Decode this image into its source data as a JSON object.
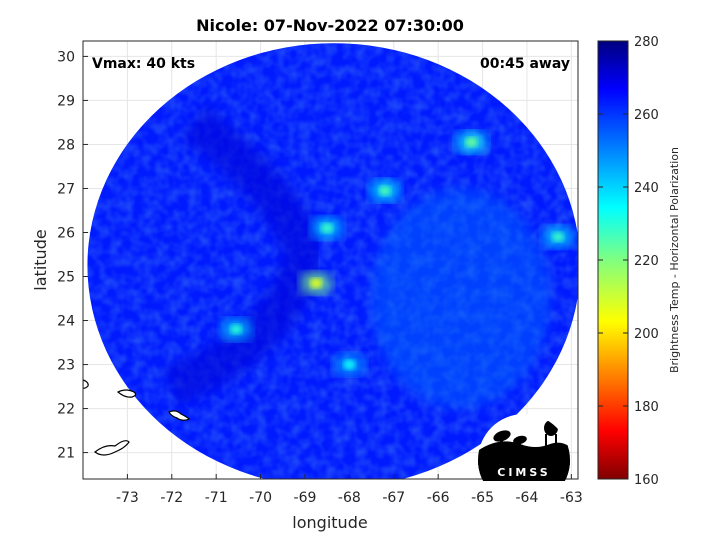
{
  "chart_data": {
    "type": "heatmap",
    "title": "Nicole: 07-Nov-2022 07:30:00",
    "xlabel": "longitude",
    "ylabel": "latitude",
    "xlim": [
      -74.0,
      -62.85
    ],
    "ylim": [
      20.4,
      30.35
    ],
    "xticks": [
      -73,
      -72,
      -71,
      -70,
      -69,
      -68,
      -67,
      -66,
      -65,
      -64,
      -63
    ],
    "yticks": [
      21,
      22,
      23,
      24,
      25,
      26,
      27,
      28,
      29,
      30
    ],
    "grid": true,
    "colorbar": {
      "label": "Brightness Temp - Horizontal Polarization",
      "range": [
        160,
        280
      ],
      "ticks": [
        160,
        180,
        200,
        220,
        240,
        260,
        280
      ],
      "colormap": "jet",
      "placement": "right"
    },
    "swath": {
      "center_lon": -68.35,
      "center_lat": 25.25,
      "radius_lon": 5.55,
      "radius_lat": 5.05
    },
    "annotations": {
      "vmax": "Vmax: 40 kts",
      "time_offset": "00:45 away"
    },
    "features": [
      {
        "name": "eye",
        "lon": -68.75,
        "lat": 24.85,
        "value": 208
      },
      {
        "name": "band-north",
        "lon": -68.5,
        "lat": 26.1,
        "value": 228
      },
      {
        "name": "band-northeast",
        "lon": -67.2,
        "lat": 26.95,
        "value": 226
      },
      {
        "name": "cell-east",
        "lon": -65.25,
        "lat": 28.05,
        "value": 222
      },
      {
        "name": "cell-far-east",
        "lon": -63.3,
        "lat": 25.9,
        "value": 228
      },
      {
        "name": "band-southwest",
        "lon": -70.55,
        "lat": 23.8,
        "value": 230
      },
      {
        "name": "band-south",
        "lon": -68.0,
        "lat": 23.0,
        "value": 234
      }
    ],
    "background_value": 262
  },
  "logo": {
    "text": "CIMSS"
  },
  "colors": {
    "axis": "#262626",
    "grid": "#e6e6e6",
    "swath_edge": "#1a47c8"
  }
}
